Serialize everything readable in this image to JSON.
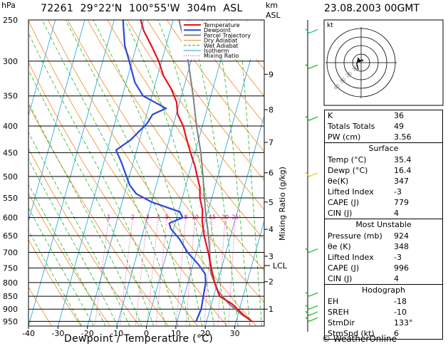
{
  "header": {
    "station": "72261",
    "lat": "29°22'N",
    "lon": "100°55'W",
    "elev": "304m",
    "asl": "ASL",
    "date": "23.08.2003",
    "time": "00GMT",
    "p_unit": "hPa",
    "km_unit": "km",
    "km_asl": "ASL"
  },
  "footer": {
    "xlabel": "Dewpoint / Temperature (°C)",
    "credit": "© WeatherOnline"
  },
  "chart_data": {
    "type": "line",
    "title": "72261  29°22'N  100°55'W  304m  ASL",
    "xlabel": "Dewpoint / Temperature (°C)",
    "ylabel": "hPa",
    "right_label": "Mixing Ratio (g/kg)",
    "x_ticks": [
      -40,
      -30,
      -20,
      -10,
      0,
      10,
      20,
      30
    ],
    "xlim": [
      -40,
      40
    ],
    "y_ticks": [
      250,
      300,
      350,
      400,
      450,
      500,
      550,
      600,
      650,
      700,
      750,
      800,
      850,
      900,
      950
    ],
    "ylim": [
      250,
      970
    ],
    "y_scale": "log",
    "km_ticks": [
      {
        "label": "1",
        "p": 900
      },
      {
        "label": "2",
        "p": 797
      },
      {
        "label": "3",
        "p": 712
      },
      {
        "label": "4",
        "p": 632
      },
      {
        "label": "5",
        "p": 560
      },
      {
        "label": "6",
        "p": 492
      },
      {
        "label": "7",
        "p": 430
      },
      {
        "label": "8",
        "p": 372
      },
      {
        "label": "9",
        "p": 318
      }
    ],
    "lcl": {
      "label": "LCL",
      "p": 742
    },
    "mixing_ratio_labels": [
      "1",
      "2",
      "3",
      "4",
      "5",
      "8",
      "10",
      "15",
      "20",
      "25"
    ],
    "legend": {
      "placement": "top-right",
      "entries": [
        {
          "name": "Temperature",
          "color": "#e8101c"
        },
        {
          "name": "Dewpoint",
          "color": "#2a49d8"
        },
        {
          "name": "Parcel Trajectory",
          "color": "#808080"
        },
        {
          "name": "Dry Adiabat",
          "color": "#f08a22"
        },
        {
          "name": "Wet Adiabat",
          "color": "#22b81e"
        },
        {
          "name": "Isotherm",
          "color": "#18a0e0"
        },
        {
          "name": "Mixing Ratio",
          "color": "#d0108c"
        }
      ]
    },
    "series": [
      {
        "name": "Temperature",
        "color": "#e8101c",
        "points": [
          [
            35.4,
            950
          ],
          [
            32,
            924
          ],
          [
            27,
            880
          ],
          [
            22,
            850
          ],
          [
            19,
            800
          ],
          [
            16.5,
            750
          ],
          [
            14,
            700
          ],
          [
            11,
            650
          ],
          [
            9,
            610
          ],
          [
            8,
            580
          ],
          [
            6,
            550
          ],
          [
            5,
            525
          ],
          [
            3,
            500
          ],
          [
            1.5,
            480
          ],
          [
            -1.5,
            450
          ],
          [
            -4.5,
            420
          ],
          [
            -6.5,
            400
          ],
          [
            -9.5,
            380
          ],
          [
            -11,
            360
          ],
          [
            -14,
            340
          ],
          [
            -18,
            320
          ],
          [
            -21,
            300
          ],
          [
            -25,
            280
          ],
          [
            -29,
            262
          ],
          [
            -31,
            250
          ]
        ]
      },
      {
        "name": "Dewpoint",
        "color": "#2a49d8",
        "points": [
          [
            16.4,
            950
          ],
          [
            17,
            900
          ],
          [
            16.5,
            850
          ],
          [
            16,
            800
          ],
          [
            15,
            770
          ],
          [
            12,
            740
          ],
          [
            7,
            700
          ],
          [
            3,
            660
          ],
          [
            -1,
            630
          ],
          [
            -2,
            615
          ],
          [
            2,
            600
          ],
          [
            0.5,
            585
          ],
          [
            -10,
            560
          ],
          [
            -16,
            540
          ],
          [
            -19,
            520
          ],
          [
            -21,
            500
          ],
          [
            -24,
            470
          ],
          [
            -27,
            445
          ],
          [
            -23,
            425
          ],
          [
            -19,
            395
          ],
          [
            -18,
            380
          ],
          [
            -14,
            370
          ],
          [
            -23,
            350
          ],
          [
            -27,
            330
          ],
          [
            -31,
            300
          ],
          [
            -34,
            280
          ],
          [
            -36,
            260
          ],
          [
            -37,
            250
          ]
        ]
      },
      {
        "name": "Parcel Trajectory",
        "color": "#808080",
        "points": [
          [
            35.4,
            950
          ],
          [
            31,
            920
          ],
          [
            26,
            880
          ],
          [
            21,
            830
          ],
          [
            19,
            800
          ],
          [
            17,
            770
          ],
          [
            16,
            745
          ],
          [
            14.5,
            700
          ],
          [
            12.5,
            650
          ],
          [
            10,
            600
          ],
          [
            7.5,
            550
          ],
          [
            5,
            500
          ],
          [
            2,
            450
          ],
          [
            -2,
            400
          ],
          [
            -6,
            350
          ],
          [
            -11,
            300
          ],
          [
            -15,
            270
          ],
          [
            -18,
            250
          ]
        ]
      }
    ],
    "hodograph": {
      "unit": "kt",
      "rings": [
        "10",
        "20",
        "30",
        "40"
      ]
    },
    "wind_profile": {
      "barbs": [
        {
          "p": 265,
          "color": "#20c0a0"
        },
        {
          "p": 310,
          "color": "#30b830"
        },
        {
          "p": 390,
          "color": "#30b830"
        },
        {
          "p": 500,
          "color": "#e0d020"
        },
        {
          "p": 700,
          "color": "#30b830"
        },
        {
          "p": 850,
          "color": "#30b830"
        },
        {
          "p": 900,
          "color": "#30b830"
        },
        {
          "p": 925,
          "color": "#30b830"
        },
        {
          "p": 950,
          "color": "#30b830"
        }
      ]
    }
  },
  "indices": {
    "rows": [
      {
        "label": "K",
        "value": "36"
      },
      {
        "label": "Totals Totals",
        "value": "49"
      },
      {
        "label": "PW (cm)",
        "value": "3.56"
      }
    ],
    "surface": {
      "title": "Surface",
      "rows": [
        {
          "label": "Temp (°C)",
          "value": "35.4"
        },
        {
          "label": "Dewp (°C)",
          "value": "16.4"
        },
        {
          "label": "θe(K)",
          "value": "347"
        },
        {
          "label": "Lifted Index",
          "value": "-3"
        },
        {
          "label": "CAPE (J)",
          "value": "779"
        },
        {
          "label": "CIN (J)",
          "value": "4"
        }
      ]
    },
    "most_unstable": {
      "title": "Most Unstable",
      "rows": [
        {
          "label": "Pressure (mb)",
          "value": "924"
        },
        {
          "label": "θe (K)",
          "value": "348"
        },
        {
          "label": "Lifted Index",
          "value": "-3"
        },
        {
          "label": "CAPE (J)",
          "value": "996"
        },
        {
          "label": "CIN (J)",
          "value": "4"
        }
      ]
    },
    "hodograph": {
      "title": "Hodograph",
      "rows": [
        {
          "label": "EH",
          "value": "-18"
        },
        {
          "label": "SREH",
          "value": "-10"
        },
        {
          "label": "StmDir",
          "value": "133°"
        },
        {
          "label": "StmSpd (kt)",
          "value": "6"
        }
      ]
    }
  }
}
